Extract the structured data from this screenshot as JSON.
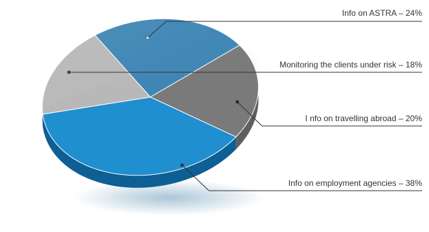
{
  "chart_data": {
    "type": "pie",
    "title": "",
    "slices": [
      {
        "label": "Info on ASTRA",
        "value": 24,
        "display": "Info on ASTRA – 24%",
        "color": "#3f86b5",
        "side_color": "#2d6c98",
        "dot_color": "#d8e9f5"
      },
      {
        "label": "Info on travelling abroad",
        "value": 20,
        "display": "I nfo on travelling abroad – 20%",
        "color": "#7a7a7a",
        "side_color": "#5f5f5f",
        "dot_color": "#222222"
      },
      {
        "label": "Info on employment agencies",
        "value": 38,
        "display": "Info on employment agencies – 38%",
        "color": "#1f8fd0",
        "side_color": "#0e5f93",
        "dot_color": "#0b3f68"
      },
      {
        "label": "Monitoring the clients under risk",
        "value": 18,
        "display": "Monitoring the clients under risk – 18%",
        "color": "#b8b8b8",
        "side_color": "#9b9b9b",
        "dot_color": "#444444"
      }
    ],
    "legend": "callout-lines-right"
  }
}
